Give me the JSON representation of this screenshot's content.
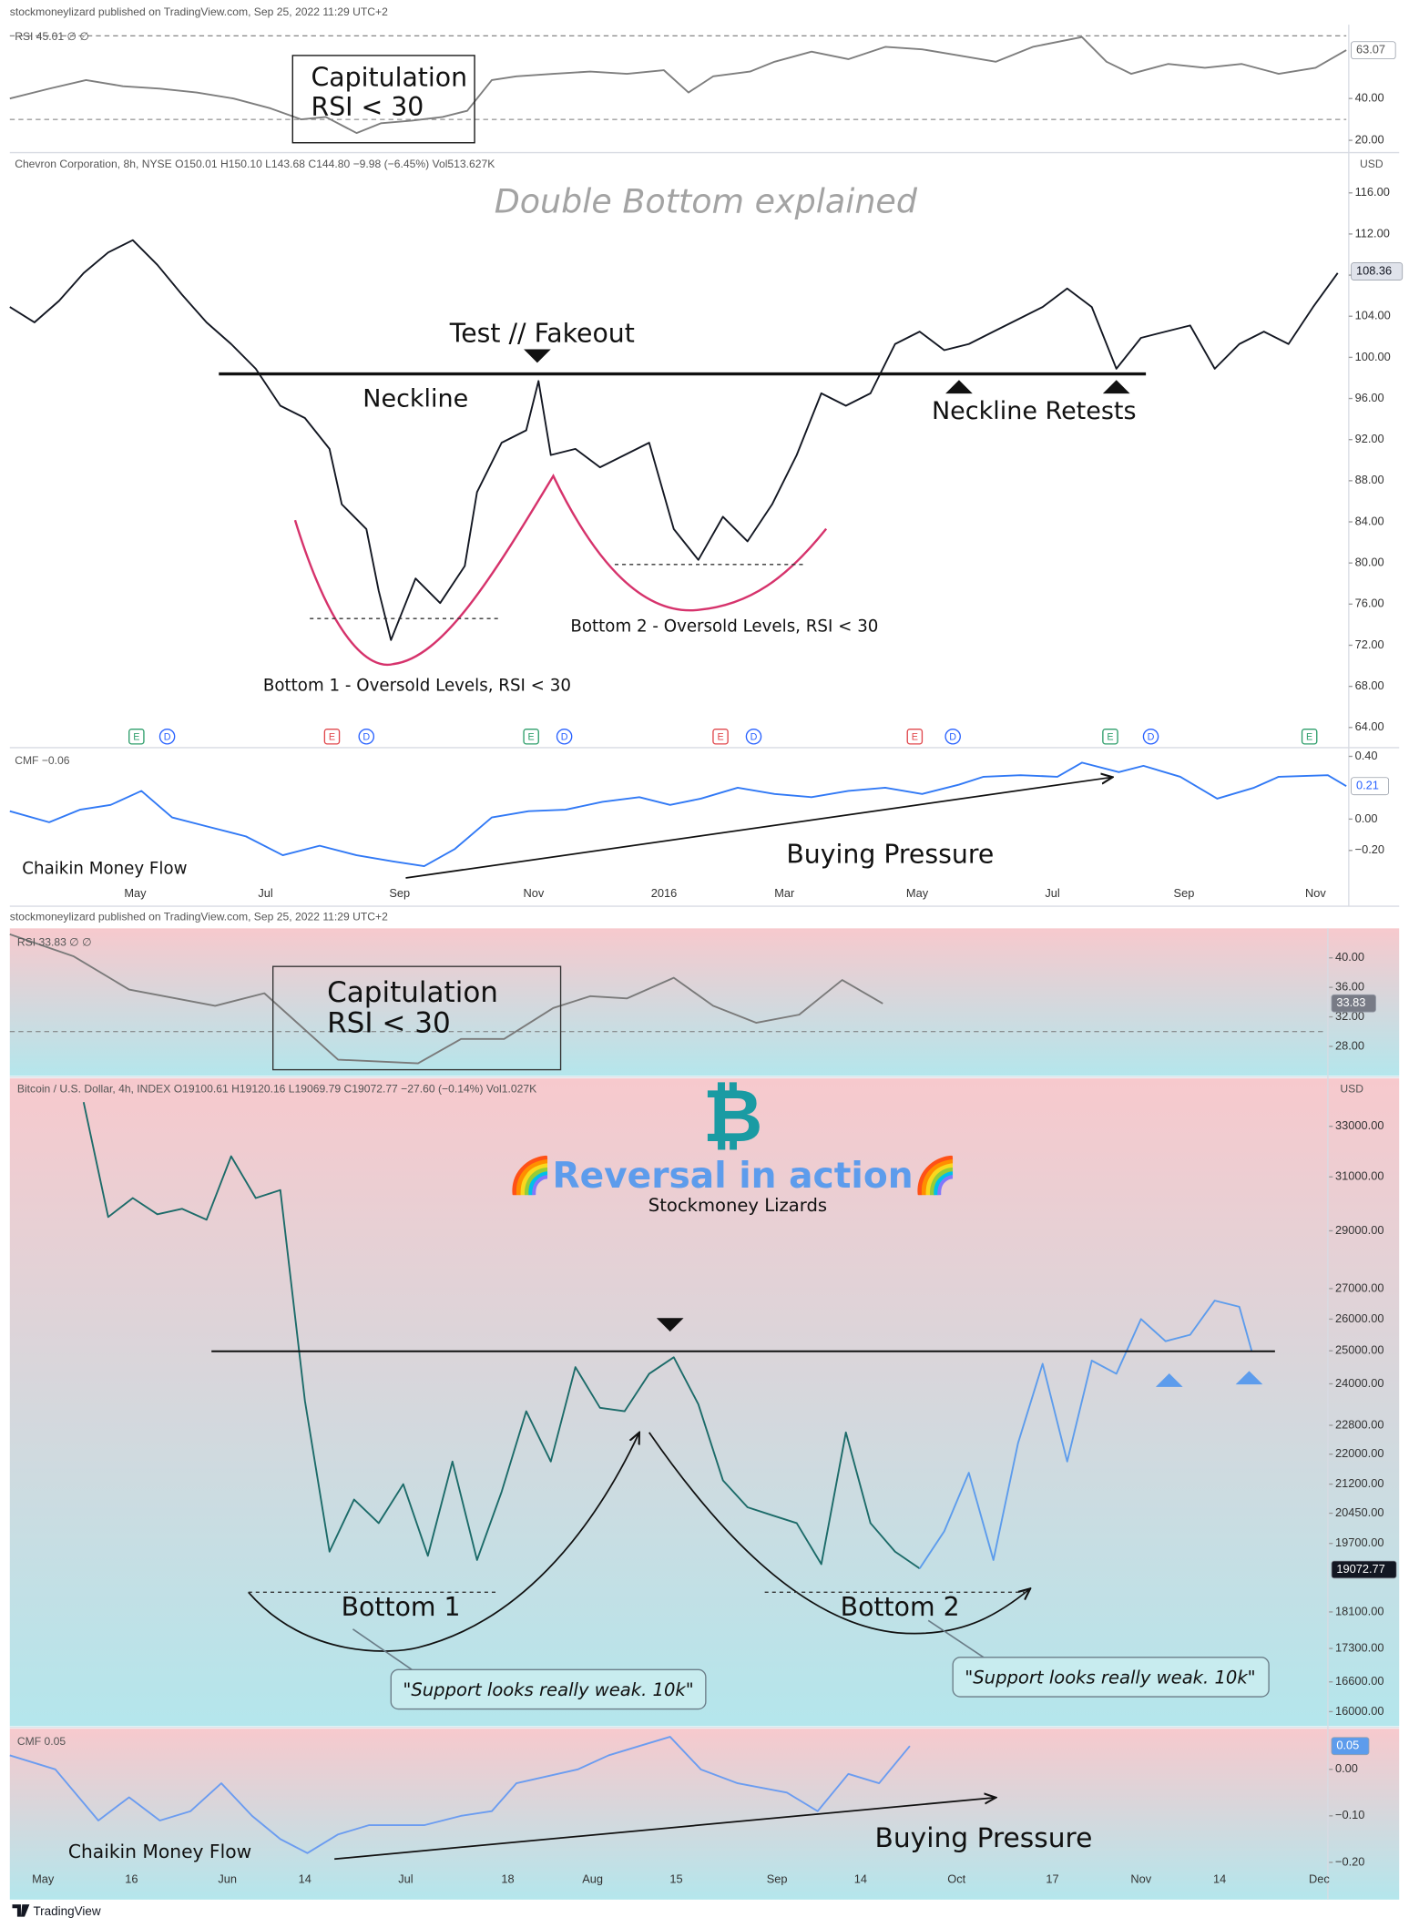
{
  "headers": [
    "stockmoneylizard published on TradingView.com, Sep 25, 2022 11:29 UTC+2",
    "stockmoneylizard published on TradingView.com, Sep 25, 2022 11:29 UTC+2"
  ],
  "footer": "TradingView",
  "chart_data": [
    {
      "type": "line",
      "label": "RSI  45.01  ∅  ∅",
      "annotations": [
        "Capitulation",
        "RSI < 30"
      ],
      "xlim": [
        0,
        108.7
      ],
      "ylim": [
        15.3,
        74.1
      ],
      "yticks": [
        {
          "value": 20,
          "label": "20.00"
        },
        {
          "value": 40,
          "label": "40.00"
        }
      ],
      "levels": [
        70,
        30
      ],
      "last_value": 63.07,
      "tag_color": "#ffffff",
      "tag_text_color": "#555555",
      "series": [
        {
          "color": "#7e7e7e",
          "x": [
            0,
            3.2,
            6.2,
            9.2,
            12.2,
            15.2,
            18.2,
            21.2,
            23.7,
            25.7,
            28.2,
            30.2,
            32.7,
            35.2,
            37.2,
            39.2,
            41.2,
            44.2,
            47.2,
            50.2,
            53.2,
            55.2,
            57.2,
            60.2,
            62.2,
            65.2,
            68.2,
            71.2,
            74.2,
            77.2,
            80.2,
            83.2,
            87.2,
            89.2,
            91.2,
            94.2,
            97.2,
            100.2,
            103.2,
            106.2,
            108.7
          ],
          "values": [
            40,
            44.7,
            48.8,
            45.9,
            44.7,
            42.9,
            40,
            35.3,
            30,
            31.2,
            23.5,
            28.2,
            29.4,
            31.2,
            34.1,
            48.8,
            50.6,
            51.8,
            52.9,
            51.8,
            53.5,
            42.9,
            50.6,
            52.9,
            57.6,
            62.4,
            58.8,
            64.7,
            63.5,
            60.6,
            57.6,
            64.7,
            69.4,
            57.6,
            51.8,
            56.5,
            54.7,
            56.5,
            51.8,
            54.7,
            63.1
          ]
        }
      ]
    },
    {
      "type": "line",
      "label": "Chevron Corporation, 8h, NYSE  O150.01 H150.10 L143.68 C144.80 −9.98 (−6.45%)  Vol513.627K",
      "currency": "USD",
      "title": "Double Bottom explained",
      "annotations": [
        "Test // Fakeout",
        "Neckline",
        "Neckline Retests",
        "Bottom 2 - Oversold Levels, RSI < 30",
        "Bottom 1 - Oversold Levels, RSI < 30"
      ],
      "xlim": [
        0,
        108.7
      ],
      "ylim": [
        62.4,
        118.6
      ],
      "yticks": [
        {
          "value": 64,
          "label": "64.00"
        },
        {
          "value": 68,
          "label": "68.00"
        },
        {
          "value": 72,
          "label": "72.00"
        },
        {
          "value": 76,
          "label": "76.00"
        },
        {
          "value": 80,
          "label": "80.00"
        },
        {
          "value": 84,
          "label": "84.00"
        },
        {
          "value": 88,
          "label": "88.00"
        },
        {
          "value": 92,
          "label": "92.00"
        },
        {
          "value": 96,
          "label": "96.00"
        },
        {
          "value": 100,
          "label": "100.00"
        },
        {
          "value": 104,
          "label": "104.00"
        },
        {
          "value": 108,
          "label": "108.00"
        },
        {
          "value": 112,
          "label": "112.00"
        },
        {
          "value": 116,
          "label": "116.00"
        }
      ],
      "last_value": 108.36,
      "tag_color": "#e0e3eb",
      "tag_text_color": "#131722",
      "series": [
        {
          "color": "#131722",
          "x": [
            0,
            2,
            4,
            6,
            8,
            10,
            12,
            14,
            16,
            18,
            20,
            22,
            24,
            26,
            27,
            29,
            30,
            31,
            33,
            35,
            37,
            38,
            40,
            42,
            43,
            44,
            46,
            48,
            50,
            52,
            54,
            56,
            58,
            60,
            62,
            64,
            66,
            68,
            70,
            72,
            74,
            76,
            78,
            80,
            82,
            84,
            86,
            88,
            90,
            92,
            94,
            96,
            98,
            100,
            102,
            104,
            106,
            108
          ],
          "values": [
            104.9,
            103.4,
            105.5,
            108.2,
            110.2,
            111.4,
            109.0,
            106.1,
            103.4,
            101.3,
            98.9,
            95.3,
            94.1,
            91.1,
            85.7,
            83.3,
            77.3,
            72.5,
            78.5,
            76.1,
            79.7,
            86.9,
            91.7,
            92.9,
            97.7,
            90.5,
            91.1,
            89.3,
            90.5,
            91.7,
            83.3,
            80.3,
            84.5,
            82.1,
            85.7,
            90.5,
            96.5,
            95.3,
            96.5,
            101.3,
            102.5,
            100.7,
            101.3,
            102.5,
            103.7,
            104.9,
            106.7,
            104.9,
            98.9,
            101.9,
            102.5,
            103.1,
            98.9,
            101.3,
            102.5,
            101.3,
            104.9,
            108.2
          ]
        }
      ],
      "events": [
        {
          "x": 10.3,
          "label": "E",
          "color": "#2e9e6b"
        },
        {
          "x": 12.8,
          "label": "D",
          "color": "#2962ff"
        },
        {
          "x": 26.2,
          "label": "E",
          "color": "#e0474c"
        },
        {
          "x": 29,
          "label": "D",
          "color": "#2962ff"
        },
        {
          "x": 42.4,
          "label": "E",
          "color": "#2e9e6b"
        },
        {
          "x": 45.1,
          "label": "D",
          "color": "#2962ff"
        },
        {
          "x": 57.8,
          "label": "E",
          "color": "#e0474c"
        },
        {
          "x": 60.5,
          "label": "D",
          "color": "#2962ff"
        },
        {
          "x": 73.6,
          "label": "E",
          "color": "#e0474c"
        },
        {
          "x": 76.7,
          "label": "D",
          "color": "#2962ff"
        },
        {
          "x": 89.5,
          "label": "E",
          "color": "#2e9e6b"
        },
        {
          "x": 92.8,
          "label": "D",
          "color": "#2962ff"
        },
        {
          "x": 105.7,
          "label": "E",
          "color": "#2e9e6b"
        }
      ]
    },
    {
      "type": "line",
      "label": "CMF  −0.06",
      "annotations": [
        "Chaikin Money Flow",
        "Buying Pressure"
      ],
      "xlim": [
        0,
        108.7
      ],
      "ylim": [
        -0.54,
        0.44
      ],
      "yticks": [
        {
          "value": 0.4,
          "label": "0.40"
        },
        {
          "value": 0,
          "label": "0.00"
        },
        {
          "value": -0.2,
          "label": "−0.20"
        }
      ],
      "last_value": 0.21,
      "tag_color": "#ffffff",
      "tag_text_color": "#2962ff",
      "series": [
        {
          "color": "#3179f5",
          "x": [
            0,
            3.2,
            5.7,
            8.2,
            10.7,
            13.2,
            16.2,
            19.2,
            22.2,
            25.2,
            28.2,
            31.2,
            33.7,
            36.2,
            39.2,
            42.2,
            45.2,
            48.2,
            51.2,
            53.7,
            56.2,
            59.2,
            62.2,
            65.2,
            68.2,
            71.2,
            74.2,
            77.2,
            79.2,
            82.2,
            85.2,
            87.2,
            90.2,
            92.2,
            95.2,
            98.2,
            101.2,
            103.2,
            107.2,
            108.7
          ],
          "values": [
            0.05,
            -0.02,
            0.06,
            0.09,
            0.18,
            0.01,
            -0.05,
            -0.11,
            -0.23,
            -0.17,
            -0.23,
            -0.27,
            -0.3,
            -0.19,
            0.01,
            0.05,
            0.06,
            0.11,
            0.14,
            0.09,
            0.13,
            0.2,
            0.16,
            0.14,
            0.18,
            0.2,
            0.16,
            0.22,
            0.27,
            0.28,
            0.27,
            0.36,
            0.3,
            0.34,
            0.27,
            0.13,
            0.2,
            0.27,
            0.28,
            0.21
          ]
        }
      ],
      "xticks": [
        {
          "value": 10.2,
          "label": "May"
        },
        {
          "value": 20.8,
          "label": "Jul"
        },
        {
          "value": 31.7,
          "label": "Sep"
        },
        {
          "value": 42.6,
          "label": "Nov"
        },
        {
          "value": 53.2,
          "label": "2016"
        },
        {
          "value": 63,
          "label": "Mar"
        },
        {
          "value": 73.8,
          "label": "May"
        },
        {
          "value": 84.8,
          "label": "Jul"
        },
        {
          "value": 95.5,
          "label": "Sep"
        },
        {
          "value": 106.2,
          "label": "Nov"
        }
      ]
    },
    {
      "type": "line",
      "label": "RSI  33.83  ∅  ∅",
      "annotations": [
        "Capitulation",
        "RSI < 30"
      ],
      "xlim": [
        0,
        107
      ],
      "ylim": [
        24,
        44
      ],
      "yticks": [
        {
          "value": 28,
          "label": "28.00"
        },
        {
          "value": 32,
          "label": "32.00"
        },
        {
          "value": 36,
          "label": "36.00"
        },
        {
          "value": 40,
          "label": "40.00"
        }
      ],
      "levels": [
        30
      ],
      "last_value": 33.83,
      "tag_color": "#787b86",
      "tag_text_color": "#ffffff",
      "series": [
        {
          "color": "#7a7a7a",
          "x": [
            0,
            5.2,
            9.7,
            16.7,
            20.7,
            26.7,
            33.2,
            36.7,
            40.2,
            44.2,
            47.2,
            50.2,
            54,
            57.2,
            60.7,
            64.2,
            67.7,
            71
          ],
          "values": [
            43.2,
            40.2,
            35.7,
            33.5,
            35.2,
            26.2,
            25.7,
            29.0,
            29.0,
            33.2,
            34.8,
            34.5,
            37.3,
            33.5,
            31.2,
            32.3,
            37.0,
            33.8
          ]
        }
      ]
    },
    {
      "type": "line",
      "label": "Bitcoin / U.S. Dollar, 4h, INDEX  O19100.61 H19120.16 L19069.79 C19072.77 −27.60 (−0.14%)  Vol1.027K",
      "currency": "USD",
      "logo": "₿",
      "title": "🌈Reversal in action🌈",
      "subtitle": "Stockmoney Lizards",
      "annotations": [
        "Bottom 1",
        "Bottom 2",
        "\"Support looks really weak. 10k\"",
        "\"Support looks really weak. 10k\""
      ],
      "log_scale": true,
      "xlim": [
        0,
        107
      ],
      "ylim": [
        15690,
        34860
      ],
      "yticks": [
        {
          "value": 16000,
          "label": "16000.00"
        },
        {
          "value": 16600,
          "label": "16600.00"
        },
        {
          "value": 17300,
          "label": "17300.00"
        },
        {
          "value": 18100,
          "label": "18100.00"
        },
        {
          "value": 19700,
          "label": "19700.00"
        },
        {
          "value": 20450,
          "label": "20450.00"
        },
        {
          "value": 21200,
          "label": "21200.00"
        },
        {
          "value": 22000,
          "label": "22000.00"
        },
        {
          "value": 22800,
          "label": "22800.00"
        },
        {
          "value": 24000,
          "label": "24000.00"
        },
        {
          "value": 25000,
          "label": "25000.00"
        },
        {
          "value": 26000,
          "label": "26000.00"
        },
        {
          "value": 27000,
          "label": "27000.00"
        },
        {
          "value": 29000,
          "label": "29000.00"
        },
        {
          "value": 31000,
          "label": "31000.00"
        },
        {
          "value": 33000,
          "label": "33000.00"
        }
      ],
      "last_value": 19072.77,
      "tag_color": "#131722",
      "tag_text_color": "#ffffff",
      "series": [
        {
          "color": "#1c6b69",
          "x": [
            6,
            8,
            10,
            12,
            14,
            16,
            18,
            20,
            22,
            24,
            26,
            28,
            30,
            32,
            34,
            36,
            38,
            40,
            42,
            44,
            46,
            48,
            50,
            52,
            54,
            56,
            58,
            60,
            62,
            64,
            66,
            68,
            70,
            72,
            74
          ],
          "values": [
            34000,
            29500,
            30200,
            29600,
            29800,
            29400,
            31800,
            30200,
            30500,
            23500,
            19500,
            20800,
            20200,
            21200,
            19400,
            21800,
            19300,
            21000,
            23200,
            21800,
            24500,
            23300,
            23200,
            24300,
            24800,
            23400,
            21300,
            20600,
            20400,
            20200,
            19200,
            22600,
            20200,
            19500,
            19100
          ]
        },
        {
          "color": "#5d9cec",
          "x": [
            74,
            76,
            78,
            80,
            82,
            84,
            86,
            88,
            90,
            92,
            94,
            96,
            98,
            100,
            101
          ],
          "values": [
            19100,
            20000,
            21500,
            19300,
            22300,
            24600,
            21800,
            24700,
            24300,
            26000,
            25300,
            25500,
            26600,
            26400,
            25000
          ]
        }
      ]
    },
    {
      "type": "line",
      "label": "CMF  0.05",
      "annotations": [
        "Chaikin Money Flow",
        "Buying Pressure"
      ],
      "xlim": [
        0,
        107
      ],
      "ylim": [
        -0.28,
        0.09
      ],
      "yticks": [
        {
          "value": 0,
          "label": "0.00"
        },
        {
          "value": -0.1,
          "label": "−0.10"
        },
        {
          "value": -0.2,
          "label": "−0.20"
        }
      ],
      "last_value": 0.05,
      "tag_color": "#5d9cec",
      "tag_text_color": "#ffffff",
      "series": [
        {
          "color": "#6b9cf0",
          "x": [
            0,
            3.7,
            7.2,
            9.7,
            12.2,
            14.7,
            17.2,
            19.7,
            22,
            24.2,
            26.7,
            29.2,
            33.7,
            36.7,
            39.2,
            41.2,
            46.2,
            48.7,
            51.2,
            53.7,
            56.2,
            59.2,
            63.2,
            65.7,
            68.2,
            70.7,
            73.2
          ],
          "values": [
            0.03,
            0,
            -0.11,
            -0.06,
            -0.11,
            -0.09,
            -0.03,
            -0.1,
            -0.15,
            -0.18,
            -0.14,
            -0.12,
            -0.12,
            -0.1,
            -0.09,
            -0.03,
            0,
            0.03,
            0.05,
            0.07,
            0,
            -0.03,
            -0.05,
            -0.09,
            -0.01,
            -0.03,
            0.05
          ]
        }
      ],
      "xticks": [
        {
          "value": 2.7,
          "label": "May"
        },
        {
          "value": 9.9,
          "label": "16"
        },
        {
          "value": 17.7,
          "label": "Jun"
        },
        {
          "value": 24.0,
          "label": "14"
        },
        {
          "value": 32.2,
          "label": "Jul"
        },
        {
          "value": 40.5,
          "label": "18"
        },
        {
          "value": 47.4,
          "label": "Aug"
        },
        {
          "value": 54.2,
          "label": "15"
        },
        {
          "value": 62.4,
          "label": "Sep"
        },
        {
          "value": 69.2,
          "label": "14"
        },
        {
          "value": 77.0,
          "label": "Oct"
        },
        {
          "value": 84.8,
          "label": "17"
        },
        {
          "value": 92.0,
          "label": "Nov"
        },
        {
          "value": 98.4,
          "label": "14"
        },
        {
          "value": 106.5,
          "label": "Dec"
        }
      ]
    }
  ]
}
